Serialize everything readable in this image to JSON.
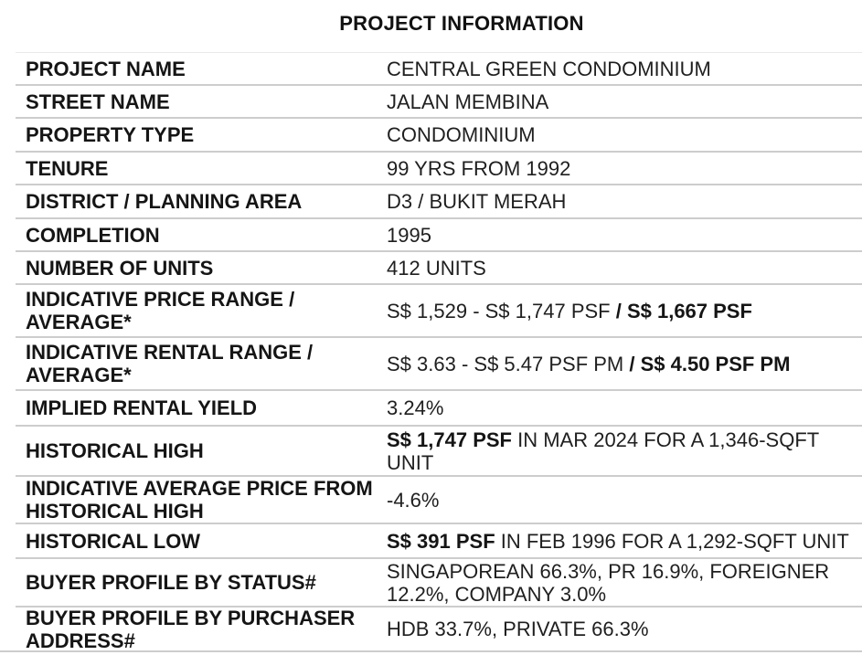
{
  "title": "PROJECT INFORMATION",
  "colors": {
    "text": "#1b1b1b",
    "divider": "#cdcdcd",
    "divider_faint": "#e9e9e9",
    "background": "#ffffff"
  },
  "rows": [
    {
      "label": "PROJECT NAME",
      "value_parts": [
        {
          "t": "CENTRAL GREEN CONDOMINIUM",
          "b": false
        }
      ]
    },
    {
      "label": "STREET NAME",
      "value_parts": [
        {
          "t": "JALAN MEMBINA",
          "b": false
        }
      ]
    },
    {
      "label": "PROPERTY TYPE",
      "value_parts": [
        {
          "t": "CONDOMINIUM",
          "b": false
        }
      ]
    },
    {
      "label": "TENURE",
      "value_parts": [
        {
          "t": "99 YRS FROM 1992",
          "b": false
        }
      ]
    },
    {
      "label": "DISTRICT / PLANNING AREA",
      "value_parts": [
        {
          "t": "D3 / BUKIT MERAH",
          "b": false
        }
      ]
    },
    {
      "label": "COMPLETION",
      "value_parts": [
        {
          "t": "1995",
          "b": false
        }
      ]
    },
    {
      "label": "NUMBER OF UNITS",
      "value_parts": [
        {
          "t": "412 UNITS",
          "b": false
        }
      ]
    },
    {
      "label": "INDICATIVE PRICE RANGE / AVERAGE*",
      "value_parts": [
        {
          "t": "S$ 1,529 - S$ 1,747 PSF ",
          "b": false
        },
        {
          "t": "/ S$ 1,667 PSF",
          "b": true
        }
      ]
    },
    {
      "label": "INDICATIVE RENTAL RANGE / AVERAGE*",
      "value_parts": [
        {
          "t": "S$ 3.63 - S$ 5.47 PSF PM ",
          "b": false
        },
        {
          "t": "/ S$ 4.50 PSF PM",
          "b": true
        }
      ]
    },
    {
      "label": "IMPLIED RENTAL YIELD",
      "value_parts": [
        {
          "t": "3.24%",
          "b": false
        }
      ]
    },
    {
      "label": "HISTORICAL HIGH",
      "value_parts": [
        {
          "t": "S$ 1,747 PSF",
          "b": true
        },
        {
          "t": " IN MAR 2024 FOR A 1,346-SQFT UNIT",
          "b": false
        }
      ]
    },
    {
      "label": "INDICATIVE AVERAGE PRICE FROM HISTORICAL HIGH",
      "value_parts": [
        {
          "t": "-4.6%",
          "b": false
        }
      ]
    },
    {
      "label": "HISTORICAL LOW",
      "value_parts": [
        {
          "t": "S$ 391 PSF",
          "b": true
        },
        {
          "t": " IN FEB 1996 FOR A 1,292-SQFT UNIT",
          "b": false
        }
      ]
    },
    {
      "label": "BUYER PROFILE BY STATUS#",
      "value_parts": [
        {
          "t": "SINGAPOREAN 66.3%, PR 16.9%, FOREIGNER 12.2%, COMPANY 3.0%",
          "b": false
        }
      ]
    },
    {
      "label": "BUYER PROFILE BY PURCHASER ADDRESS#",
      "value_parts": [
        {
          "t": "HDB 33.7%, PRIVATE 66.3%",
          "b": false
        }
      ]
    }
  ]
}
